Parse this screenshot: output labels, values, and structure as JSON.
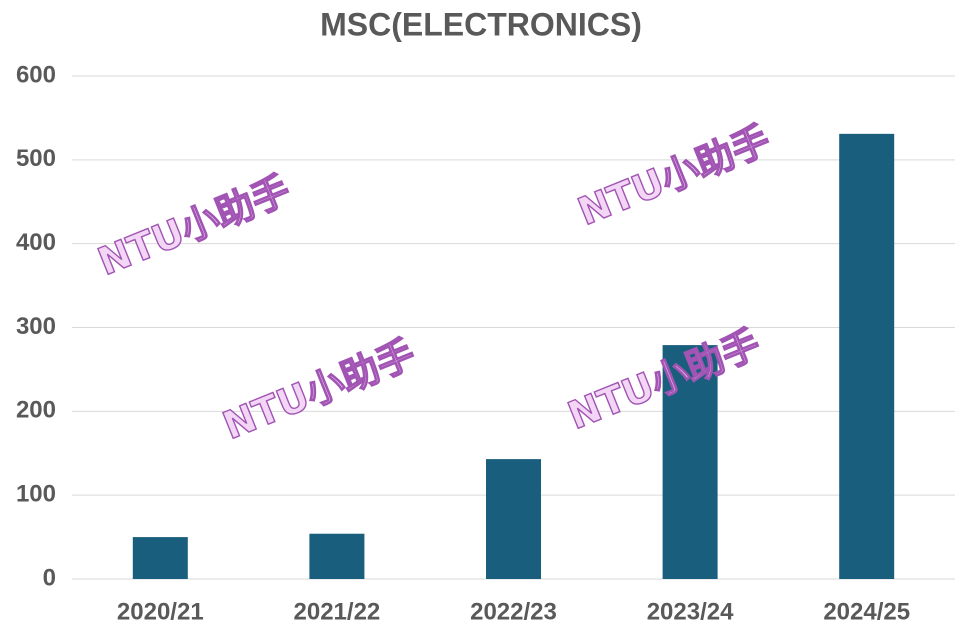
{
  "chart_data": {
    "type": "bar",
    "title": "MSC(ELECTRONICS)",
    "categories": [
      "2020/21",
      "2021/22",
      "2022/23",
      "2023/24",
      "2024/25"
    ],
    "values": [
      50,
      54,
      143,
      279,
      531
    ],
    "color": "#195e7d",
    "ylim": [
      0,
      600
    ],
    "yticks": [
      0,
      100,
      200,
      300,
      400,
      500,
      600
    ],
    "grid": true,
    "watermark": "NTU小助手"
  }
}
